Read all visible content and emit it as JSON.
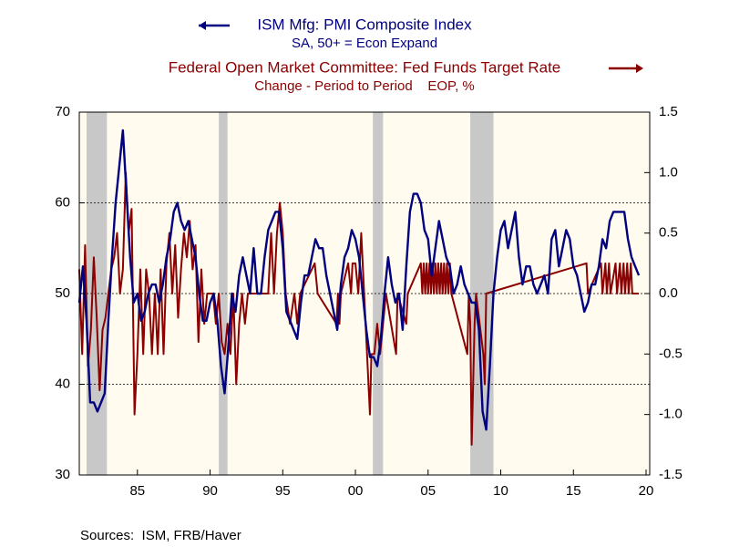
{
  "chart_data": {
    "type": "line",
    "source": "Sources:  ISM, FRB/Haver",
    "xlim": [
      1981,
      2020.25
    ],
    "xticks": [
      {
        "value": 1985,
        "label": "85"
      },
      {
        "value": 1990,
        "label": "90"
      },
      {
        "value": 1995,
        "label": "95"
      },
      {
        "value": 2000,
        "label": "00"
      },
      {
        "value": 2005,
        "label": "05"
      },
      {
        "value": 2010,
        "label": "10"
      },
      {
        "value": 2015,
        "label": "15"
      },
      {
        "value": 2020,
        "label": "20"
      }
    ],
    "ylim": [
      30,
      70
    ],
    "yticks": [
      30,
      40,
      50,
      60,
      70
    ],
    "y2lim": [
      -1.5,
      1.5
    ],
    "y2ticks": [
      -1.5,
      {
        "value": -1.0,
        "label": "-1.0"
      },
      -0.5,
      {
        "value": 0,
        "label": "0.0"
      },
      0.5,
      {
        "value": 1.0,
        "label": "1.0"
      },
      1.5
    ],
    "grid": true,
    "recessions": [
      [
        1981.5,
        1982.9
      ],
      [
        1990.6,
        1991.2
      ],
      [
        2001.2,
        2001.9
      ],
      [
        2007.9,
        2009.5
      ]
    ],
    "series": [
      {
        "name": "ISM Mfg: PMI Composite Index",
        "subtitle": "SA, 50+ = Econ Expand",
        "color": "#000080",
        "axis": "y",
        "x": [
          1981,
          1981.25,
          1981.5,
          1981.75,
          1982,
          1982.25,
          1982.5,
          1982.75,
          1983,
          1983.25,
          1983.5,
          1983.75,
          1984,
          1984.25,
          1984.5,
          1984.75,
          1985,
          1985.25,
          1985.5,
          1985.75,
          1986,
          1986.25,
          1986.5,
          1986.75,
          1987,
          1987.25,
          1987.5,
          1987.75,
          1988,
          1988.25,
          1988.5,
          1988.75,
          1989,
          1989.25,
          1989.5,
          1989.75,
          1990,
          1990.25,
          1990.5,
          1990.75,
          1991,
          1991.25,
          1991.5,
          1991.75,
          1992,
          1992.25,
          1992.5,
          1992.75,
          1993,
          1993.25,
          1993.5,
          1993.75,
          1994,
          1994.25,
          1994.5,
          1994.75,
          1995,
          1995.25,
          1995.5,
          1995.75,
          1996,
          1996.25,
          1996.5,
          1996.75,
          1997,
          1997.25,
          1997.5,
          1997.75,
          1998,
          1998.25,
          1998.5,
          1998.75,
          1999,
          1999.25,
          1999.5,
          1999.75,
          2000,
          2000.25,
          2000.5,
          2000.75,
          2001,
          2001.25,
          2001.5,
          2001.75,
          2002,
          2002.25,
          2002.5,
          2002.75,
          2003,
          2003.25,
          2003.5,
          2003.75,
          2004,
          2004.25,
          2004.5,
          2004.75,
          2005,
          2005.25,
          2005.5,
          2005.75,
          2006,
          2006.25,
          2006.5,
          2006.75,
          2007,
          2007.25,
          2007.5,
          2007.75,
          2008,
          2008.25,
          2008.5,
          2008.75,
          2009,
          2009.25,
          2009.5,
          2009.75,
          2010,
          2010.25,
          2010.5,
          2010.75,
          2011,
          2011.25,
          2011.5,
          2011.75,
          2012,
          2012.25,
          2012.5,
          2012.75,
          2013,
          2013.25,
          2013.5,
          2013.75,
          2014,
          2014.25,
          2014.5,
          2014.75,
          2015,
          2015.25,
          2015.5,
          2015.75,
          2016,
          2016.25,
          2016.5,
          2016.75,
          2017,
          2017.25,
          2017.5,
          2017.75,
          2018,
          2018.25,
          2018.5,
          2018.75,
          2019,
          2019.25,
          2019.5
        ],
        "values": [
          49,
          53,
          47,
          38,
          38,
          37,
          38,
          39,
          47,
          54,
          60,
          64,
          68,
          61,
          54,
          49,
          50,
          47,
          48,
          50,
          51,
          51,
          49,
          51,
          54,
          56,
          59,
          60,
          58,
          57,
          58,
          56,
          54,
          50,
          47,
          47,
          49,
          50,
          47,
          42,
          39,
          44,
          50,
          48,
          52,
          54,
          52,
          50,
          55,
          50,
          50,
          54,
          57,
          58,
          59,
          59,
          55,
          48,
          47,
          46,
          45,
          49,
          52,
          52,
          54,
          56,
          55,
          55,
          52,
          50,
          48,
          46,
          51,
          54,
          55,
          57,
          56,
          54,
          50,
          46,
          43,
          43,
          42,
          45,
          50,
          54,
          51,
          49,
          50,
          46,
          53,
          59,
          61,
          61,
          60,
          57,
          56,
          52,
          55,
          58,
          56,
          54,
          53,
          50,
          51,
          53,
          51,
          50,
          49,
          49,
          46,
          37,
          35,
          42,
          50,
          54,
          57,
          58,
          55,
          57,
          59,
          54,
          51,
          53,
          53,
          51,
          50,
          51,
          52,
          50,
          56,
          57,
          53,
          55,
          57,
          56,
          53,
          52,
          50,
          48,
          49,
          51,
          51,
          53,
          56,
          55,
          58,
          59,
          59,
          59,
          59,
          56,
          54,
          53,
          52
        ]
      },
      {
        "name": "Federal Open Market Committee: Fed Funds Target Rate",
        "subtitle": "Change - Period to Period    EOP, %",
        "color": "#8b0000",
        "axis": "y2",
        "x": [
          1981,
          1981.2,
          1981.4,
          1981.6,
          1981.8,
          1982,
          1982.2,
          1982.4,
          1982.6,
          1982.8,
          1983,
          1983.2,
          1983.4,
          1983.6,
          1983.8,
          1984,
          1984.2,
          1984.4,
          1984.6,
          1984.8,
          1985,
          1985.2,
          1985.4,
          1985.6,
          1985.8,
          1986,
          1986.2,
          1986.4,
          1986.6,
          1986.8,
          1987,
          1987.2,
          1987.4,
          1987.6,
          1987.8,
          1988,
          1988.2,
          1988.4,
          1988.6,
          1988.8,
          1989,
          1989.2,
          1989.4,
          1989.6,
          1989.8,
          1990.2,
          1990.4,
          1990.6,
          1990.8,
          1991,
          1991.2,
          1991.4,
          1991.6,
          1991.8,
          1992,
          1992.2,
          1992.4,
          1992.6,
          1994,
          1994.1,
          1994.2,
          1994.4,
          1994.6,
          1994.8,
          1995,
          1995.2,
          1995.5,
          1995.8,
          1996,
          1996.2,
          1997.2,
          1997.4,
          1998.7,
          1998.8,
          1998.9,
          1999,
          1999.5,
          1999.7,
          1999.8,
          2000,
          2000.2,
          2000.4,
          2000.6,
          2001,
          2001.1,
          2001.3,
          2001.5,
          2001.7,
          2001.9,
          2002.1,
          2002.8,
          2002.9,
          2003.5,
          2003.6,
          2004.5,
          2004.6,
          2004.7,
          2004.8,
          2004.9,
          2005,
          2005.1,
          2005.2,
          2005.3,
          2005.4,
          2005.5,
          2005.6,
          2005.7,
          2005.8,
          2005.9,
          2006,
          2006.1,
          2006.2,
          2006.3,
          2006.4,
          2006.5,
          2006.6,
          2007.7,
          2007.8,
          2007.9,
          2008,
          2008.1,
          2008.2,
          2008.3,
          2008.8,
          2008.9,
          2009,
          2015.9,
          2016,
          2016.9,
          2017,
          2017.2,
          2017.3,
          2017.45,
          2017.55,
          2017.9,
          2018,
          2018.2,
          2018.3,
          2018.45,
          2018.55,
          2018.7,
          2018.8,
          2018.95,
          2019.05,
          2019.5
        ],
        "values": [
          0.2,
          -0.5,
          0.4,
          -0.6,
          -0.3,
          0.3,
          -0.2,
          -0.8,
          -0.3,
          -0.2,
          0,
          0.2,
          0.3,
          0.5,
          0,
          0.2,
          1.0,
          0.5,
          0.7,
          -1.0,
          -0.5,
          0.2,
          -0.5,
          0.2,
          0,
          -0.5,
          0,
          -0.5,
          0.2,
          -0.5,
          0.25,
          0.5,
          0,
          0.4,
          -0.2,
          0.2,
          0.5,
          0.3,
          0.6,
          0.2,
          0.4,
          -0.4,
          0.2,
          -0.25,
          0,
          0,
          -0.25,
          0,
          -0.4,
          -0.5,
          -0.25,
          -0.5,
          0,
          -0.75,
          -0.25,
          0,
          -0.25,
          0,
          0,
          0.25,
          0.5,
          0,
          0.5,
          0.75,
          0.5,
          0,
          -0.25,
          0,
          -0.25,
          0,
          0.25,
          0,
          -0.25,
          0,
          -0.25,
          0,
          0.25,
          0,
          0.25,
          0.25,
          0,
          0.5,
          0,
          -1.0,
          -0.5,
          -0.5,
          -0.25,
          -0.5,
          -0.25,
          0,
          -0.5,
          0,
          -0.25,
          0,
          0.25,
          0,
          0.25,
          0,
          0.25,
          0,
          0.25,
          0,
          0.25,
          0,
          0.25,
          0,
          0.25,
          0,
          0.25,
          0,
          0.25,
          0,
          0.25,
          0,
          0.25,
          0,
          -0.5,
          0,
          -0.25,
          -1.25,
          -0.75,
          -0.25,
          0,
          -0.5,
          -0.75,
          0,
          0.25,
          0,
          0.25,
          0,
          0.25,
          0,
          0.25,
          0,
          0.25,
          0,
          0.25,
          0,
          0.25,
          0,
          0.25,
          0,
          0.25,
          0,
          0
        ]
      }
    ]
  }
}
